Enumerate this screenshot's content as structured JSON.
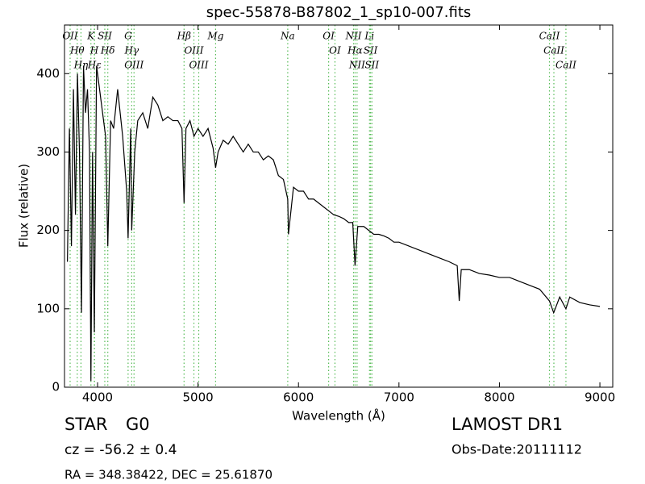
{
  "chart_data": {
    "type": "line",
    "title": "spec-55878-B87802_1_sp10-007.fits",
    "xlabel": "Wavelength (Å)",
    "ylabel": "Flux (relative)",
    "xlim": [
      3671,
      9128
    ],
    "ylim": [
      0,
      462
    ],
    "xticks": [
      4000,
      5000,
      6000,
      7000,
      8000,
      9000
    ],
    "yticks": [
      0,
      100,
      200,
      300,
      400
    ],
    "color": "#000000",
    "line_color": "#55bb55",
    "x": [
      3700,
      3720,
      3740,
      3760,
      3780,
      3800,
      3820,
      3840,
      3860,
      3880,
      3900,
      3920,
      3934,
      3950,
      3968,
      3990,
      4020,
      4050,
      4080,
      4102,
      4130,
      4160,
      4200,
      4250,
      4290,
      4304,
      4330,
      4340,
      4370,
      4400,
      4450,
      4500,
      4550,
      4600,
      4650,
      4700,
      4750,
      4800,
      4840,
      4861,
      4880,
      4920,
      4960,
      5000,
      5050,
      5100,
      5150,
      5175,
      5200,
      5250,
      5300,
      5350,
      5400,
      5450,
      5500,
      5550,
      5600,
      5650,
      5700,
      5750,
      5800,
      5850,
      5893,
      5900,
      5950,
      6000,
      6050,
      6100,
      6150,
      6200,
      6250,
      6300,
      6350,
      6400,
      6450,
      6500,
      6540,
      6563,
      6590,
      6650,
      6700,
      6750,
      6800,
      6850,
      6900,
      6950,
      7000,
      7100,
      7200,
      7300,
      7400,
      7500,
      7580,
      7600,
      7620,
      7700,
      7800,
      7900,
      8000,
      8100,
      8200,
      8300,
      8400,
      8498,
      8540,
      8600,
      8662,
      8700,
      8800,
      8900,
      9000
    ],
    "values": [
      160,
      330,
      180,
      380,
      220,
      400,
      300,
      95,
      410,
      350,
      380,
      300,
      8,
      300,
      70,
      410,
      380,
      350,
      320,
      180,
      340,
      330,
      380,
      320,
      250,
      190,
      330,
      200,
      300,
      340,
      350,
      330,
      370,
      360,
      340,
      345,
      340,
      340,
      330,
      235,
      330,
      340,
      320,
      330,
      320,
      330,
      305,
      280,
      300,
      315,
      310,
      320,
      310,
      300,
      310,
      300,
      300,
      290,
      295,
      290,
      270,
      265,
      240,
      195,
      255,
      250,
      250,
      240,
      240,
      235,
      230,
      225,
      220,
      218,
      215,
      210,
      210,
      155,
      205,
      205,
      200,
      195,
      195,
      193,
      190,
      185,
      185,
      180,
      175,
      170,
      165,
      160,
      155,
      110,
      150,
      150,
      145,
      143,
      140,
      140,
      135,
      130,
      125,
      110,
      95,
      115,
      100,
      115,
      108,
      105,
      103
    ],
    "lines": [
      {
        "label": "OII",
        "x": 3727
      },
      {
        "label": "Hθ",
        "x": 3798
      },
      {
        "label": "Hη",
        "x": 3835
      },
      {
        "label": "K",
        "x": 3934
      },
      {
        "label": "H",
        "x": 3968
      },
      {
        "label": "Hε",
        "x": 3970
      },
      {
        "label": "SII",
        "x": 4072
      },
      {
        "label": "Hδ",
        "x": 4102
      },
      {
        "label": "G",
        "x": 4304
      },
      {
        "label": "Hγ",
        "x": 4340
      },
      {
        "label": "OIII",
        "x": 4363
      },
      {
        "label": "Hβ",
        "x": 4861
      },
      {
        "label": "OIII",
        "x": 4959
      },
      {
        "label": "OIII",
        "x": 5007
      },
      {
        "label": "Mg",
        "x": 5175
      },
      {
        "label": "Na",
        "x": 5893
      },
      {
        "label": "OI",
        "x": 6300
      },
      {
        "label": "OI",
        "x": 6363
      },
      {
        "label": "NII",
        "x": 6548
      },
      {
        "label": "Hα",
        "x": 6563
      },
      {
        "label": "NII",
        "x": 6583
      },
      {
        "label": "Li",
        "x": 6707
      },
      {
        "label": "SII",
        "x": 6717
      },
      {
        "label": "SII",
        "x": 6731
      },
      {
        "label": "CaII",
        "x": 8498
      },
      {
        "label": "CaII",
        "x": 8542
      },
      {
        "label": "CaII",
        "x": 8662
      }
    ],
    "class": "STAR",
    "subclass": "G0",
    "redshift": "cz = -56.2 ± 0.4",
    "coords": "RA = 348.38422, DEC = 25.61870",
    "release": "LAMOST DR1",
    "obs_date": "Obs-Date:20111112"
  }
}
